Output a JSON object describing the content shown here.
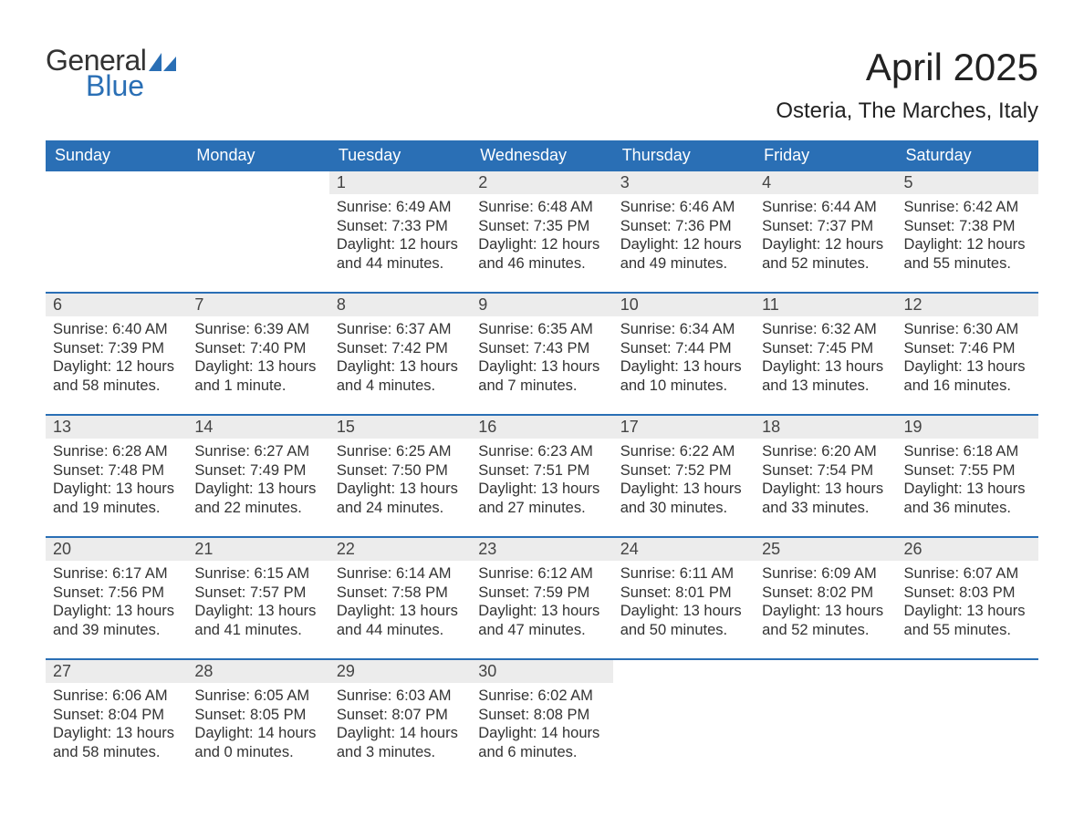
{
  "brand": {
    "line1": "General",
    "line2": "Blue",
    "accent_color": "#2a6fb5"
  },
  "title": "April 2025",
  "location": "Osteria, The Marches, Italy",
  "colors": {
    "header_bg": "#2a6fb5",
    "header_text": "#ffffff",
    "daynum_bg": "#ececec",
    "row_divider": "#2a6fb5",
    "body_text": "#333333",
    "page_bg": "#ffffff"
  },
  "typography": {
    "title_fontsize": 42,
    "location_fontsize": 24,
    "weekday_fontsize": 18,
    "daynum_fontsize": 18,
    "cell_fontsize": 16.5
  },
  "weekdays": [
    "Sunday",
    "Monday",
    "Tuesday",
    "Wednesday",
    "Thursday",
    "Friday",
    "Saturday"
  ],
  "weeks": [
    [
      null,
      null,
      {
        "n": "1",
        "sunrise": "6:49 AM",
        "sunset": "7:33 PM",
        "daylight": "12 hours and 44 minutes."
      },
      {
        "n": "2",
        "sunrise": "6:48 AM",
        "sunset": "7:35 PM",
        "daylight": "12 hours and 46 minutes."
      },
      {
        "n": "3",
        "sunrise": "6:46 AM",
        "sunset": "7:36 PM",
        "daylight": "12 hours and 49 minutes."
      },
      {
        "n": "4",
        "sunrise": "6:44 AM",
        "sunset": "7:37 PM",
        "daylight": "12 hours and 52 minutes."
      },
      {
        "n": "5",
        "sunrise": "6:42 AM",
        "sunset": "7:38 PM",
        "daylight": "12 hours and 55 minutes."
      }
    ],
    [
      {
        "n": "6",
        "sunrise": "6:40 AM",
        "sunset": "7:39 PM",
        "daylight": "12 hours and 58 minutes."
      },
      {
        "n": "7",
        "sunrise": "6:39 AM",
        "sunset": "7:40 PM",
        "daylight": "13 hours and 1 minute."
      },
      {
        "n": "8",
        "sunrise": "6:37 AM",
        "sunset": "7:42 PM",
        "daylight": "13 hours and 4 minutes."
      },
      {
        "n": "9",
        "sunrise": "6:35 AM",
        "sunset": "7:43 PM",
        "daylight": "13 hours and 7 minutes."
      },
      {
        "n": "10",
        "sunrise": "6:34 AM",
        "sunset": "7:44 PM",
        "daylight": "13 hours and 10 minutes."
      },
      {
        "n": "11",
        "sunrise": "6:32 AM",
        "sunset": "7:45 PM",
        "daylight": "13 hours and 13 minutes."
      },
      {
        "n": "12",
        "sunrise": "6:30 AM",
        "sunset": "7:46 PM",
        "daylight": "13 hours and 16 minutes."
      }
    ],
    [
      {
        "n": "13",
        "sunrise": "6:28 AM",
        "sunset": "7:48 PM",
        "daylight": "13 hours and 19 minutes."
      },
      {
        "n": "14",
        "sunrise": "6:27 AM",
        "sunset": "7:49 PM",
        "daylight": "13 hours and 22 minutes."
      },
      {
        "n": "15",
        "sunrise": "6:25 AM",
        "sunset": "7:50 PM",
        "daylight": "13 hours and 24 minutes."
      },
      {
        "n": "16",
        "sunrise": "6:23 AM",
        "sunset": "7:51 PM",
        "daylight": "13 hours and 27 minutes."
      },
      {
        "n": "17",
        "sunrise": "6:22 AM",
        "sunset": "7:52 PM",
        "daylight": "13 hours and 30 minutes."
      },
      {
        "n": "18",
        "sunrise": "6:20 AM",
        "sunset": "7:54 PM",
        "daylight": "13 hours and 33 minutes."
      },
      {
        "n": "19",
        "sunrise": "6:18 AM",
        "sunset": "7:55 PM",
        "daylight": "13 hours and 36 minutes."
      }
    ],
    [
      {
        "n": "20",
        "sunrise": "6:17 AM",
        "sunset": "7:56 PM",
        "daylight": "13 hours and 39 minutes."
      },
      {
        "n": "21",
        "sunrise": "6:15 AM",
        "sunset": "7:57 PM",
        "daylight": "13 hours and 41 minutes."
      },
      {
        "n": "22",
        "sunrise": "6:14 AM",
        "sunset": "7:58 PM",
        "daylight": "13 hours and 44 minutes."
      },
      {
        "n": "23",
        "sunrise": "6:12 AM",
        "sunset": "7:59 PM",
        "daylight": "13 hours and 47 minutes."
      },
      {
        "n": "24",
        "sunrise": "6:11 AM",
        "sunset": "8:01 PM",
        "daylight": "13 hours and 50 minutes."
      },
      {
        "n": "25",
        "sunrise": "6:09 AM",
        "sunset": "8:02 PM",
        "daylight": "13 hours and 52 minutes."
      },
      {
        "n": "26",
        "sunrise": "6:07 AM",
        "sunset": "8:03 PM",
        "daylight": "13 hours and 55 minutes."
      }
    ],
    [
      {
        "n": "27",
        "sunrise": "6:06 AM",
        "sunset": "8:04 PM",
        "daylight": "13 hours and 58 minutes."
      },
      {
        "n": "28",
        "sunrise": "6:05 AM",
        "sunset": "8:05 PM",
        "daylight": "14 hours and 0 minutes."
      },
      {
        "n": "29",
        "sunrise": "6:03 AM",
        "sunset": "8:07 PM",
        "daylight": "14 hours and 3 minutes."
      },
      {
        "n": "30",
        "sunrise": "6:02 AM",
        "sunset": "8:08 PM",
        "daylight": "14 hours and 6 minutes."
      },
      null,
      null,
      null
    ]
  ],
  "labels": {
    "sunrise": "Sunrise:",
    "sunset": "Sunset:",
    "daylight": "Daylight:"
  }
}
